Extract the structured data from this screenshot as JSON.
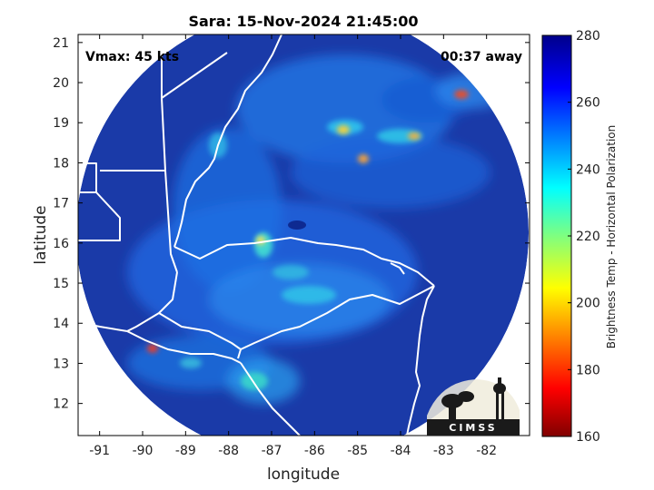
{
  "title": "Sara: 15-Nov-2024 21:45:00",
  "vmax": "Vmax: 45 kts",
  "away": "00:37 away",
  "xlabel": "longitude",
  "ylabel": "latitude",
  "colorbar_label": "Brightness Temp - Horizontal Polarization",
  "logo_text": "CIMSS",
  "colors": {
    "background": "#ffffff",
    "coast": "#ffffff",
    "axes": "#000000"
  },
  "chart_data": {
    "type": "heatmap",
    "x_ticks": [
      -91,
      -90,
      -89,
      -88,
      -87,
      -86,
      -85,
      -84,
      -83,
      -82
    ],
    "y_ticks": [
      12,
      13,
      14,
      15,
      16,
      17,
      18,
      19,
      20,
      21
    ],
    "x_range": [
      -91.5,
      -81.0
    ],
    "y_range": [
      11.2,
      21.2
    ],
    "colorbar": {
      "min": 160,
      "max": 280,
      "ticks": [
        160,
        180,
        200,
        220,
        240,
        260,
        280
      ],
      "colormap": "jet"
    },
    "swath_center": [
      -86.2,
      16.2
    ],
    "features": [
      {
        "lon": -86.0,
        "lat": 16.9,
        "value": 268
      },
      {
        "lon": -87.0,
        "lat": 16.1,
        "value": 225
      },
      {
        "lon": -85.0,
        "lat": 18.9,
        "value": 200
      },
      {
        "lon": -84.0,
        "lat": 18.8,
        "value": 210
      },
      {
        "lon": -82.6,
        "lat": 19.8,
        "value": 185
      },
      {
        "lon": -89.6,
        "lat": 13.3,
        "value": 185
      },
      {
        "lon": -86.0,
        "lat": 15.2,
        "value": 232
      },
      {
        "lon": -84.8,
        "lat": 18.1,
        "value": 195
      }
    ]
  }
}
